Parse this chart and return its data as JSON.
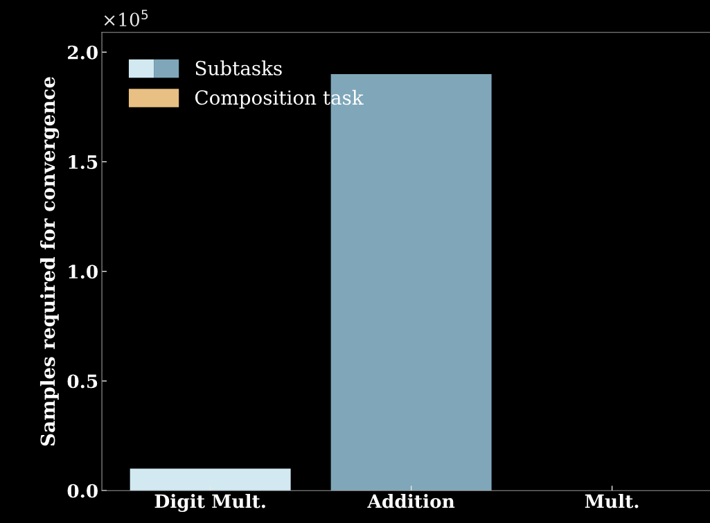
{
  "chart_data": {
    "type": "bar",
    "categories": [
      "Digit Mult.",
      "Addition",
      "Mult."
    ],
    "ylabel": "Samples required for convergence",
    "annotations": [
      "×10$^{5}$"
    ],
    "series": [
      {
        "name": "Subtasks",
        "colors": [
          "#d2e9f1",
          "#7fa7b9",
          null
        ],
        "values": [
          0.1,
          1.9,
          null
        ]
      },
      {
        "name": "Composition task",
        "color": "#e8c083",
        "values": [
          null,
          null,
          null
        ]
      }
    ],
    "ylim": [
      0,
      2.09
    ],
    "yticks": [
      {
        "value": 0,
        "label": "0.0"
      },
      {
        "value": 0.5,
        "label": "0.5"
      },
      {
        "value": 1.0,
        "label": "1.0"
      },
      {
        "value": 1.5,
        "label": "1.5"
      },
      {
        "value": 2.0,
        "label": "2.0"
      }
    ],
    "legend": "top left",
    "grid": false
  }
}
